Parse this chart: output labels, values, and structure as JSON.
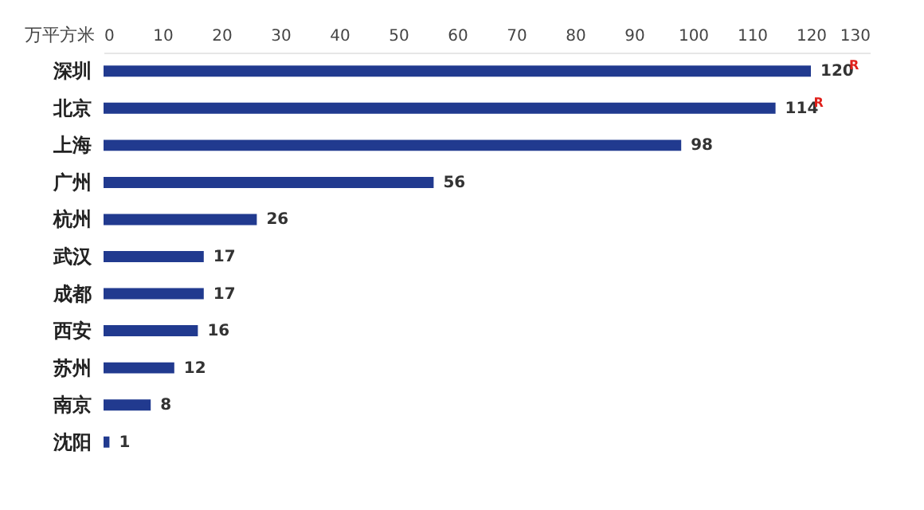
{
  "chart_data": {
    "type": "bar",
    "orientation": "horizontal",
    "xlabel": "万平方米",
    "categories": [
      "深圳",
      "北京",
      "上海",
      "广州",
      "杭州",
      "武汉",
      "成都",
      "西安",
      "苏州",
      "南京",
      "沈阳"
    ],
    "values": [
      120,
      114,
      98,
      56,
      26,
      17,
      17,
      16,
      12,
      8,
      1
    ],
    "color": "#213a8f",
    "data_labels": true,
    "grid": false,
    "xlim": [
      0,
      130
    ],
    "xticks": [
      0,
      10,
      20,
      30,
      40,
      50,
      60,
      70,
      80,
      90,
      100,
      110,
      120,
      130
    ],
    "annotations": [
      {
        "text": "R",
        "x": 120,
        "y": "深圳"
      },
      {
        "text": "R",
        "x": 114,
        "y": "北京"
      }
    ]
  }
}
